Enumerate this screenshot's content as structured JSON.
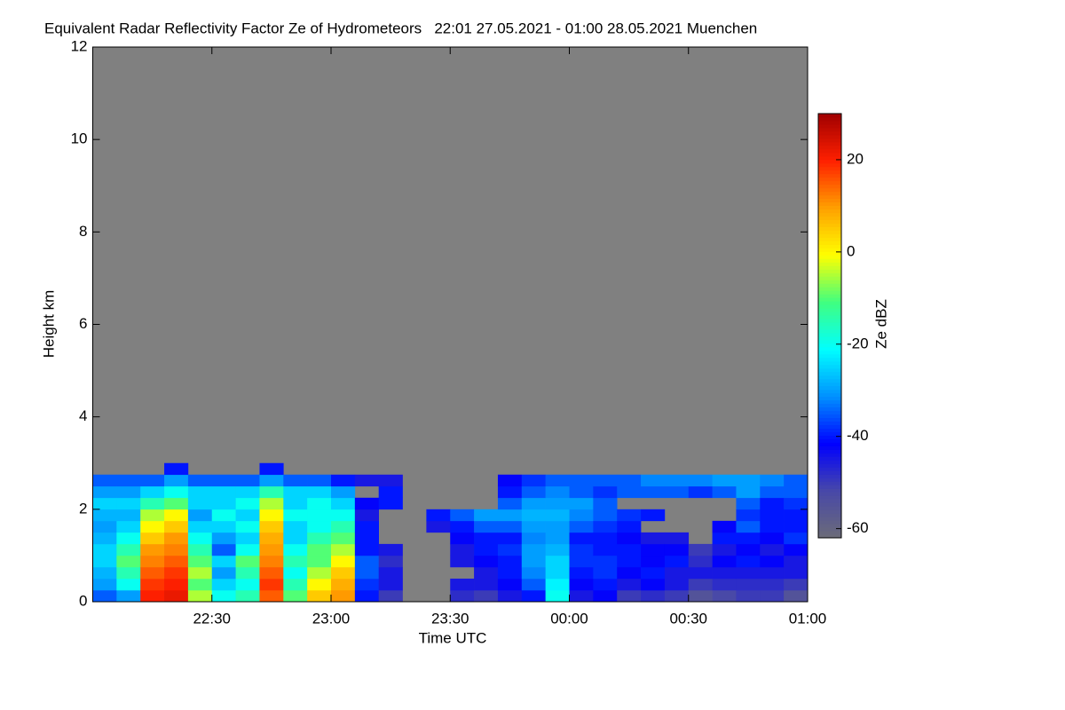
{
  "chart_data": {
    "type": "heatmap",
    "title": "Equivalent Radar Reflectivity Factor Ze of Hydrometeors   22:01 27.05.2021 - 01:00 28.05.2021 Muenchen",
    "xlabel": "Time UTC",
    "ylabel": "Height km",
    "zlabel": "Ze dBZ",
    "xlim": [
      0,
      180
    ],
    "ylim": [
      0,
      12
    ],
    "zlim": [
      -62,
      30
    ],
    "xticks": [
      {
        "value": 30,
        "label": "22:30"
      },
      {
        "value": 60,
        "label": "23:00"
      },
      {
        "value": 90,
        "label": "23:30"
      },
      {
        "value": 120,
        "label": "00:00"
      },
      {
        "value": 150,
        "label": "00:30"
      },
      {
        "value": 180,
        "label": "01:00"
      }
    ],
    "yticks": [
      0,
      2,
      4,
      6,
      8,
      10,
      12
    ],
    "zticks": [
      -60,
      -40,
      -20,
      0,
      20
    ],
    "background": "#808080",
    "colormap": [
      "#6c6c78",
      "#4848a8",
      "#0000ff",
      "#0090ff",
      "#00ffff",
      "#40ff80",
      "#ffff00",
      "#ffa000",
      "#ff2000",
      "#a00000"
    ],
    "xbins": [
      0,
      6,
      12,
      18,
      24,
      30,
      36,
      42,
      48,
      54,
      60,
      66,
      72,
      78,
      84,
      90,
      96,
      102,
      108,
      114,
      120,
      126,
      132,
      138,
      144,
      150,
      156,
      162,
      168,
      174,
      180
    ],
    "ybins": [
      0,
      0.25,
      0.5,
      0.75,
      1,
      1.25,
      1.5,
      1.75,
      2,
      2.25,
      2.5,
      2.75,
      3
    ],
    "values": [
      [
        -35,
        -30,
        -28,
        -25,
        -25,
        -28,
        -30,
        -28,
        -25,
        -30,
        -35,
        null
      ],
      [
        -30,
        -20,
        -15,
        -10,
        -15,
        -20,
        -25,
        -28,
        -25,
        -30,
        -35,
        null
      ],
      [
        20,
        18,
        15,
        12,
        10,
        5,
        0,
        -5,
        -15,
        -25,
        -35,
        null
      ],
      [
        22,
        20,
        18,
        15,
        12,
        10,
        5,
        0,
        -10,
        -20,
        -30,
        -40
      ],
      [
        -5,
        -10,
        -5,
        -10,
        -15,
        -20,
        -25,
        -30,
        -25,
        -25,
        -35,
        null
      ],
      [
        -20,
        -25,
        -30,
        -25,
        -35,
        -30,
        -25,
        -20,
        -25,
        -25,
        -35,
        null
      ],
      [
        -15,
        -20,
        -15,
        -10,
        -20,
        -25,
        -20,
        -25,
        -20,
        -25,
        -35,
        null
      ],
      [
        15,
        18,
        15,
        12,
        10,
        8,
        5,
        0,
        -5,
        -15,
        -30,
        -40
      ],
      [
        -10,
        -15,
        -20,
        -15,
        -20,
        -25,
        -25,
        -20,
        -25,
        -25,
        -35,
        null
      ],
      [
        5,
        0,
        -5,
        -10,
        -10,
        -15,
        -20,
        -20,
        -20,
        -25,
        -35,
        null
      ],
      [
        10,
        8,
        5,
        0,
        -5,
        -10,
        -15,
        -20,
        -25,
        -30,
        -40,
        null
      ],
      [
        -40,
        -38,
        -35,
        -35,
        -40,
        -40,
        -40,
        -45,
        -42,
        null,
        -45,
        null
      ],
      [
        -50,
        -45,
        -45,
        -48,
        -45,
        null,
        null,
        null,
        -40,
        -40,
        -45,
        null
      ],
      [
        null,
        null,
        null,
        null,
        null,
        null,
        null,
        null,
        null,
        null,
        null,
        null
      ],
      [
        null,
        null,
        null,
        null,
        null,
        null,
        -45,
        -40,
        null,
        null,
        null,
        null
      ],
      [
        -48,
        -45,
        null,
        -45,
        -45,
        -42,
        -40,
        -35,
        null,
        null,
        null,
        null
      ],
      [
        -50,
        -45,
        -45,
        -42,
        -40,
        -40,
        -35,
        -30,
        null,
        null,
        null,
        null
      ],
      [
        -45,
        -42,
        -40,
        -40,
        -38,
        -40,
        -35,
        -30,
        -35,
        -40,
        -42,
        null
      ],
      [
        -40,
        -35,
        -32,
        -30,
        -30,
        -32,
        -30,
        -28,
        -30,
        -35,
        -38,
        null
      ],
      [
        -20,
        -22,
        -25,
        -25,
        -28,
        -30,
        -30,
        -28,
        -30,
        -32,
        -35,
        null
      ],
      [
        -45,
        -42,
        -40,
        -38,
        -38,
        -40,
        -35,
        -32,
        -30,
        -35,
        -35,
        null
      ],
      [
        -42,
        -40,
        -38,
        -38,
        -40,
        -40,
        -38,
        -35,
        -35,
        -38,
        -35,
        null
      ],
      [
        -50,
        -45,
        -42,
        -40,
        -40,
        -42,
        -40,
        -38,
        null,
        -35,
        -35,
        null
      ],
      [
        -48,
        -42,
        -40,
        -42,
        -42,
        -45,
        null,
        -40,
        null,
        -35,
        -32,
        null
      ],
      [
        -50,
        -45,
        -45,
        -40,
        -42,
        -45,
        null,
        null,
        null,
        -35,
        -32,
        null
      ],
      [
        -55,
        -50,
        -45,
        -48,
        -50,
        null,
        null,
        null,
        null,
        -38,
        -32,
        null
      ],
      [
        -52,
        -48,
        -45,
        -42,
        -45,
        -40,
        -42,
        null,
        null,
        -35,
        -30,
        null
      ],
      [
        -50,
        -48,
        -45,
        -40,
        -42,
        -40,
        -35,
        -38,
        -35,
        -30,
        -30,
        null
      ],
      [
        -50,
        -48,
        -45,
        -42,
        -45,
        -42,
        -40,
        -40,
        -40,
        -35,
        -32,
        null
      ],
      [
        -55,
        -50,
        -45,
        -45,
        -42,
        -38,
        -40,
        -40,
        -38,
        -35,
        -35,
        null
      ]
    ]
  }
}
